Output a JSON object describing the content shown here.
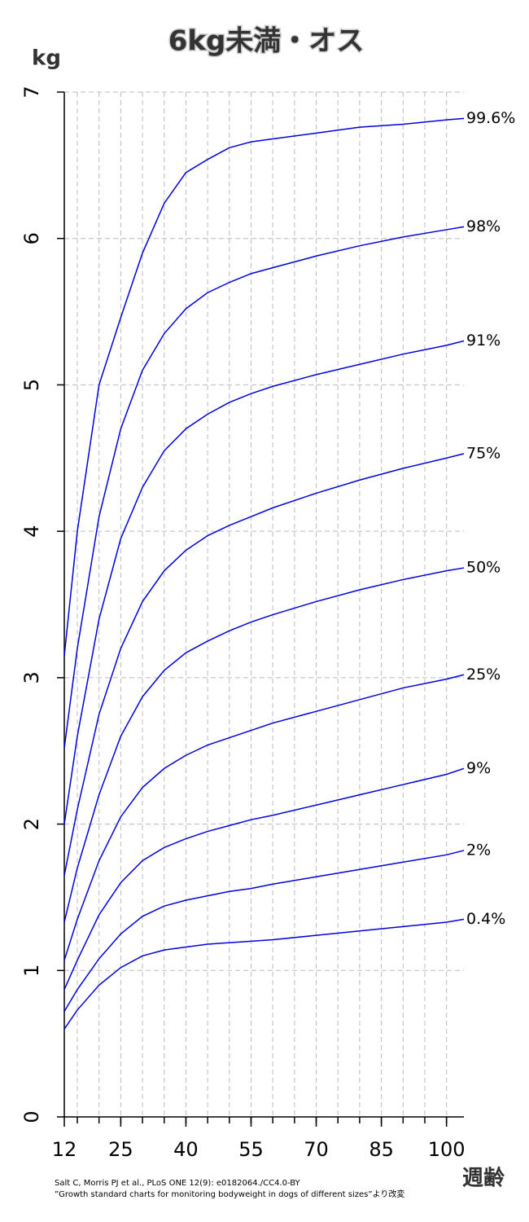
{
  "chart_data": {
    "type": "line",
    "title": "6kg未満・オス",
    "y_label": "kg",
    "x_label": "週齢",
    "source": [
      "Salt C, Morris PJ et al., PLoS ONE 12(9): e0182064./CC4.0-BY",
      "”Growth standard charts for monitoring bodyweight in dogs of different sizes”より改変"
    ],
    "x": [
      12,
      15,
      20,
      25,
      30,
      35,
      40,
      45,
      50,
      55,
      60,
      70,
      80,
      90,
      100,
      104
    ],
    "xlim": [
      12,
      104
    ],
    "xticks": [
      12,
      25,
      40,
      55,
      70,
      85,
      100
    ],
    "xminor": [
      15,
      20,
      25,
      30,
      35,
      40,
      45,
      50,
      55,
      60,
      65,
      70,
      75,
      80,
      85,
      90,
      95,
      100
    ],
    "ylim": [
      0,
      7
    ],
    "yticks": [
      0,
      1,
      2,
      3,
      4,
      5,
      6,
      7
    ],
    "grid": true,
    "series": [
      {
        "name": "99.6%",
        "color": "#0000dd",
        "values": [
          3.15,
          4.0,
          5.0,
          5.46,
          5.9,
          6.24,
          6.45,
          6.54,
          6.62,
          6.66,
          6.68,
          6.72,
          6.76,
          6.78,
          6.81,
          6.82
        ]
      },
      {
        "name": "98%",
        "color": "#0000dd",
        "values": [
          2.52,
          3.2,
          4.1,
          4.7,
          5.1,
          5.35,
          5.52,
          5.63,
          5.7,
          5.76,
          5.8,
          5.88,
          5.95,
          6.01,
          6.06,
          6.08
        ]
      },
      {
        "name": "91%",
        "color": "#0000dd",
        "values": [
          2.0,
          2.6,
          3.4,
          3.95,
          4.3,
          4.55,
          4.7,
          4.8,
          4.88,
          4.94,
          4.99,
          5.07,
          5.14,
          5.21,
          5.27,
          5.3
        ]
      },
      {
        "name": "75%",
        "color": "#0000dd",
        "values": [
          1.65,
          2.1,
          2.75,
          3.2,
          3.52,
          3.73,
          3.87,
          3.97,
          4.04,
          4.1,
          4.16,
          4.26,
          4.35,
          4.43,
          4.5,
          4.53
        ]
      },
      {
        "name": "50%",
        "color": "#0000dd",
        "values": [
          1.33,
          1.7,
          2.2,
          2.6,
          2.87,
          3.05,
          3.17,
          3.25,
          3.32,
          3.38,
          3.43,
          3.52,
          3.6,
          3.67,
          3.73,
          3.75
        ]
      },
      {
        "name": "25%",
        "color": "#0000dd",
        "values": [
          1.07,
          1.35,
          1.75,
          2.05,
          2.25,
          2.38,
          2.47,
          2.54,
          2.59,
          2.64,
          2.69,
          2.77,
          2.85,
          2.93,
          2.99,
          3.02
        ]
      },
      {
        "name": "9%",
        "color": "#0000dd",
        "values": [
          0.87,
          1.07,
          1.38,
          1.6,
          1.75,
          1.84,
          1.9,
          1.95,
          1.99,
          2.03,
          2.06,
          2.13,
          2.2,
          2.27,
          2.34,
          2.38
        ]
      },
      {
        "name": "2%",
        "color": "#0000dd",
        "values": [
          0.72,
          0.87,
          1.08,
          1.25,
          1.37,
          1.44,
          1.48,
          1.51,
          1.54,
          1.56,
          1.59,
          1.64,
          1.69,
          1.74,
          1.79,
          1.82
        ]
      },
      {
        "name": "0.4%",
        "color": "#0000dd",
        "values": [
          0.6,
          0.73,
          0.9,
          1.02,
          1.1,
          1.14,
          1.16,
          1.18,
          1.19,
          1.2,
          1.21,
          1.24,
          1.27,
          1.3,
          1.33,
          1.35
        ]
      }
    ]
  }
}
